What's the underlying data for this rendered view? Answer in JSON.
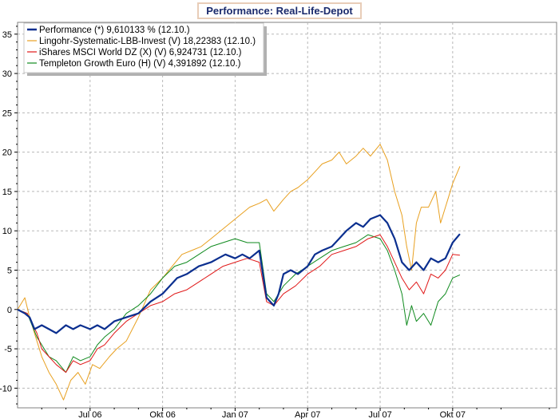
{
  "chart_data": {
    "type": "line",
    "title": "Performance: Real-Life-Depot",
    "xlabel": "",
    "ylabel": "",
    "ylim": [
      -12.5,
      36.5
    ],
    "yticks": [
      -10,
      -5,
      0,
      5,
      10,
      15,
      20,
      25,
      30,
      35
    ],
    "xlim": [
      0,
      22.3
    ],
    "xticks": [
      {
        "label": "Jul 06",
        "x": 3.0
      },
      {
        "label": "Okt 06",
        "x": 6.0
      },
      {
        "label": "Jan 07",
        "x": 9.0
      },
      {
        "label": "Apr 07",
        "x": 12.0
      },
      {
        "label": "Jul 07",
        "x": 15.0
      },
      {
        "label": "Okt 07",
        "x": 18.0
      }
    ],
    "grid": true,
    "legend_position": "top-left",
    "series": [
      {
        "name": "Performance (*) 9,610133 % (12.10.)",
        "color": "#0b2f8f",
        "x": [
          0,
          0.3,
          0.5,
          0.7,
          1.0,
          1.3,
          1.6,
          2.0,
          2.3,
          2.6,
          3.0,
          3.3,
          3.6,
          4.0,
          4.5,
          5.0,
          5.5,
          6.0,
          6.3,
          6.6,
          7.0,
          7.5,
          8.0,
          8.3,
          8.6,
          9.0,
          9.3,
          9.6,
          10.0,
          10.3,
          10.6,
          10.8,
          11.0,
          11.3,
          11.6,
          12.0,
          12.3,
          12.6,
          13.0,
          13.3,
          13.6,
          14.0,
          14.3,
          14.6,
          15.0,
          15.3,
          15.6,
          15.9,
          16.2,
          16.5,
          16.8,
          17.1,
          17.4,
          17.7,
          18.0,
          18.3
        ],
        "y": [
          0,
          -0.5,
          -1.0,
          -2.5,
          -2.0,
          -2.5,
          -3.0,
          -2.0,
          -2.5,
          -2.0,
          -2.5,
          -2.0,
          -2.5,
          -1.5,
          -1.0,
          -0.5,
          1.0,
          2.0,
          3.0,
          4.0,
          4.5,
          5.5,
          6.0,
          6.5,
          7.0,
          6.5,
          7.0,
          6.5,
          7.5,
          1.5,
          0.5,
          2.0,
          4.5,
          5.0,
          4.5,
          5.5,
          7.0,
          7.5,
          8.0,
          9.0,
          10.0,
          11.0,
          10.5,
          11.5,
          12.0,
          11.0,
          9.0,
          6.0,
          5.0,
          6.0,
          5.0,
          6.5,
          6.0,
          6.5,
          8.5,
          9.6
        ]
      },
      {
        "name": "Lingohr-Systematic-LBB-Invest (V) 18,22383 (12.10.)",
        "color": "#e8a020",
        "x": [
          0,
          0.3,
          0.5,
          0.8,
          1.0,
          1.3,
          1.6,
          1.9,
          2.2,
          2.5,
          2.8,
          3.1,
          3.4,
          3.8,
          4.1,
          4.5,
          5.0,
          5.5,
          6.0,
          6.4,
          6.8,
          7.2,
          7.6,
          8.0,
          8.4,
          8.8,
          9.2,
          9.6,
          10.0,
          10.3,
          10.6,
          11.0,
          11.3,
          11.6,
          12.0,
          12.3,
          12.6,
          13.0,
          13.3,
          13.6,
          14.0,
          14.3,
          14.6,
          15.0,
          15.3,
          15.6,
          15.9,
          16.1,
          16.3,
          16.5,
          16.7,
          17.0,
          17.3,
          17.5,
          17.8,
          18.0,
          18.3
        ],
        "y": [
          0,
          1.5,
          -1.0,
          -4.0,
          -6.0,
          -8.0,
          -9.5,
          -11.5,
          -9.0,
          -8.0,
          -9.5,
          -7.0,
          -7.5,
          -6.0,
          -5.0,
          -4.0,
          -1.0,
          2.5,
          4.0,
          5.5,
          7.0,
          7.5,
          8.0,
          9.0,
          10.0,
          11.0,
          12.0,
          13.0,
          13.5,
          14.0,
          12.5,
          14.0,
          15.0,
          15.5,
          16.5,
          17.5,
          18.5,
          19.0,
          20.0,
          18.5,
          19.5,
          20.5,
          19.5,
          21.0,
          19.0,
          15.0,
          12.0,
          8.0,
          5.0,
          11.0,
          13.0,
          13.0,
          15.0,
          11.0,
          14.0,
          16.0,
          18.2
        ]
      },
      {
        "name": "iShares MSCI World DZ (X) (V) 6,924731 (12.10.)",
        "color": "#e01818",
        "x": [
          0,
          0.4,
          0.8,
          1.0,
          1.3,
          1.6,
          2.0,
          2.3,
          2.6,
          3.0,
          3.3,
          3.6,
          4.0,
          4.5,
          5.0,
          5.5,
          6.0,
          6.5,
          7.0,
          7.5,
          8.0,
          8.5,
          9.0,
          9.5,
          10.0,
          10.3,
          10.6,
          11.0,
          11.5,
          12.0,
          12.5,
          13.0,
          13.5,
          14.0,
          14.5,
          15.0,
          15.3,
          15.6,
          15.9,
          16.2,
          16.5,
          16.8,
          17.1,
          17.4,
          17.7,
          18.0,
          18.3
        ],
        "y": [
          0,
          -0.5,
          -3.0,
          -5.0,
          -6.0,
          -7.0,
          -8.0,
          -6.5,
          -7.0,
          -6.5,
          -5.0,
          -4.5,
          -3.0,
          -1.5,
          -0.5,
          0.5,
          1.0,
          2.0,
          2.5,
          3.5,
          4.5,
          5.5,
          6.0,
          6.5,
          6.0,
          1.0,
          0.5,
          2.0,
          3.0,
          4.5,
          5.5,
          7.0,
          7.5,
          8.0,
          9.0,
          9.5,
          8.0,
          6.0,
          4.0,
          2.5,
          3.5,
          2.0,
          4.5,
          4.0,
          5.0,
          7.0,
          6.9
        ]
      },
      {
        "name": "Templeton Growth Euro (H) (V) 4,391892 (12.10.)",
        "color": "#0f8a1e",
        "x": [
          0,
          0.4,
          0.8,
          1.0,
          1.3,
          1.6,
          2.0,
          2.3,
          2.6,
          3.0,
          3.3,
          3.6,
          4.0,
          4.5,
          5.0,
          5.5,
          6.0,
          6.5,
          7.0,
          7.5,
          8.0,
          8.5,
          9.0,
          9.5,
          10.0,
          10.3,
          10.6,
          11.0,
          11.5,
          12.0,
          12.5,
          13.0,
          13.5,
          14.0,
          14.5,
          15.0,
          15.3,
          15.6,
          15.9,
          16.1,
          16.3,
          16.5,
          16.8,
          17.1,
          17.4,
          17.7,
          18.0,
          18.3
        ],
        "y": [
          0,
          -0.5,
          -3.5,
          -4.5,
          -6.0,
          -6.5,
          -8.0,
          -6.0,
          -6.5,
          -6.0,
          -4.5,
          -3.5,
          -2.5,
          -0.5,
          0.5,
          2.0,
          4.0,
          5.5,
          6.0,
          7.0,
          8.0,
          8.5,
          9.0,
          8.5,
          8.5,
          2.0,
          1.0,
          3.0,
          4.5,
          5.5,
          6.5,
          7.5,
          8.0,
          8.5,
          9.5,
          9.0,
          7.5,
          5.0,
          2.0,
          -2.0,
          0.5,
          -1.5,
          -0.5,
          -2.0,
          1.0,
          2.0,
          4.0,
          4.4
        ]
      }
    ]
  }
}
